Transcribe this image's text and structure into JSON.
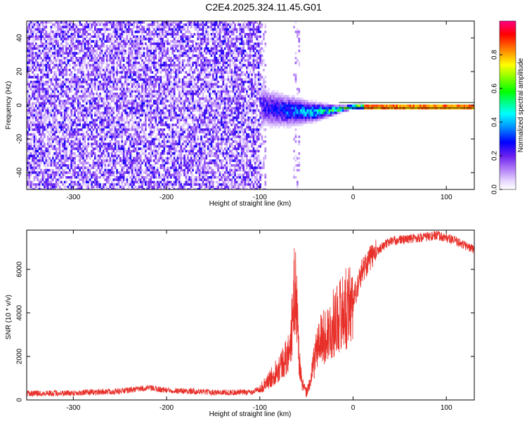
{
  "figure": {
    "title": "C2E4.2025.324.11.45.G01"
  },
  "colors": {
    "background": "#ffffff",
    "snr_line": "#e8302a",
    "axes": "#000000",
    "colormap": [
      "#ffffff",
      "#e8d8ff",
      "#c9a6ff",
      "#9a5cf5",
      "#6a1ff0",
      "#0000ff",
      "#00a0ff",
      "#00ffff",
      "#00ff7f",
      "#00ff00",
      "#7fff00",
      "#ffff00",
      "#ff8000",
      "#ff0000",
      "#ff0080"
    ]
  },
  "chart_data": [
    {
      "type": "heatmap",
      "title": "C2E4.2025.324.11.45.G01",
      "xlabel": "Height of straight line (km)",
      "ylabel": "Frequency (Hz)",
      "xlim": [
        -350,
        130
      ],
      "ylim": [
        -50,
        50
      ],
      "xticks": [
        -300,
        -200,
        -100,
        0,
        100
      ],
      "yticks": [
        -40,
        -20,
        0,
        20,
        40
      ],
      "colorbar": {
        "label": "Normalized spectral amplitude",
        "range": [
          0.0,
          1.0
        ],
        "ticks": [
          0.0,
          0.2,
          0.4,
          0.6,
          0.8
        ]
      },
      "features": {
        "noise_region_x": [
          -350,
          -100
        ],
        "transition_x": [
          -100,
          10
        ],
        "signal_start_x": -100,
        "signal_line_freq": 0,
        "signal_line_x": [
          -15,
          130
        ],
        "signal_line_amplitude": 0.9
      }
    },
    {
      "type": "line",
      "xlabel": "Height of straight line (km)",
      "ylabel": "SNR (10 * v/v)",
      "xlim": [
        -350,
        130
      ],
      "ylim": [
        0,
        7800
      ],
      "xticks": [
        -300,
        -200,
        -100,
        0,
        100
      ],
      "yticks": [
        0,
        2000,
        4000,
        6000
      ],
      "series": [
        {
          "x": [
            -350,
            -300,
            -250,
            -220,
            -200,
            -150,
            -110,
            -100,
            -90,
            -80,
            -70,
            -65,
            -62,
            -60,
            -58,
            -55,
            -50,
            -45,
            -40,
            -35,
            -30,
            -25,
            -20,
            -15,
            -10,
            -5,
            0,
            5,
            10,
            20,
            30,
            40,
            50,
            60,
            70,
            80,
            90,
            100,
            110,
            120,
            130
          ],
          "values": [
            300,
            320,
            400,
            550,
            450,
            350,
            350,
            500,
            900,
            1500,
            2000,
            3500,
            5500,
            4000,
            2000,
            800,
            300,
            1000,
            2200,
            2800,
            2900,
            3200,
            3600,
            3900,
            4100,
            4300,
            4600,
            5200,
            6000,
            6600,
            7000,
            7300,
            7350,
            7400,
            7450,
            7500,
            7550,
            7450,
            7300,
            7100,
            6900
          ]
        }
      ]
    }
  ]
}
